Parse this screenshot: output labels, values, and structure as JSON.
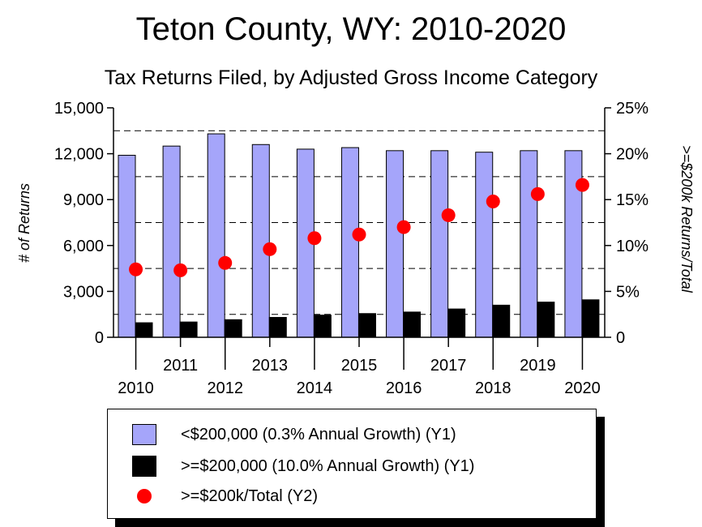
{
  "chart_data": {
    "type": "bar",
    "title": "Teton County, WY: 2010-2020",
    "subtitle": "Tax Returns Filed, by Adjusted Gross Income Category",
    "categories": [
      "2010",
      "2011",
      "2012",
      "2013",
      "2014",
      "2015",
      "2016",
      "2017",
      "2018",
      "2019",
      "2020"
    ],
    "series": [
      {
        "name": "<$200,000 (0.3% Annual Growth) (Y1)",
        "axis": "y1",
        "kind": "bar",
        "color": "#a5a5fa",
        "values": [
          11900,
          12500,
          13300,
          12600,
          12300,
          12400,
          12200,
          12200,
          12100,
          12200,
          12200
        ]
      },
      {
        "name": ">=$200,000 (10.0% Annual Growth) (Y1)",
        "axis": "y1",
        "kind": "bar",
        "color": "#000000",
        "values": [
          950,
          1000,
          1150,
          1300,
          1450,
          1550,
          1650,
          1850,
          2100,
          2300,
          2450
        ]
      },
      {
        "name": ">=$200k/Total (Y2)",
        "axis": "y2",
        "kind": "scatter",
        "color": "#ff0000",
        "values": [
          7.4,
          7.3,
          8.1,
          9.6,
          10.8,
          11.2,
          12.0,
          13.3,
          14.8,
          15.6,
          16.6
        ]
      }
    ],
    "ylabel": "# of Returns",
    "y2label": ">=$200k Returns/Total",
    "ylim": [
      0,
      15000
    ],
    "y2lim": [
      0,
      25
    ],
    "yticks": [
      "0",
      "3,000",
      "6,000",
      "9,000",
      "12,000",
      "15,000"
    ],
    "y2ticks": [
      "0",
      "5%",
      "10%",
      "15%",
      "20%",
      "25%"
    ],
    "grid": "dashed",
    "legend_position": "bottom"
  }
}
